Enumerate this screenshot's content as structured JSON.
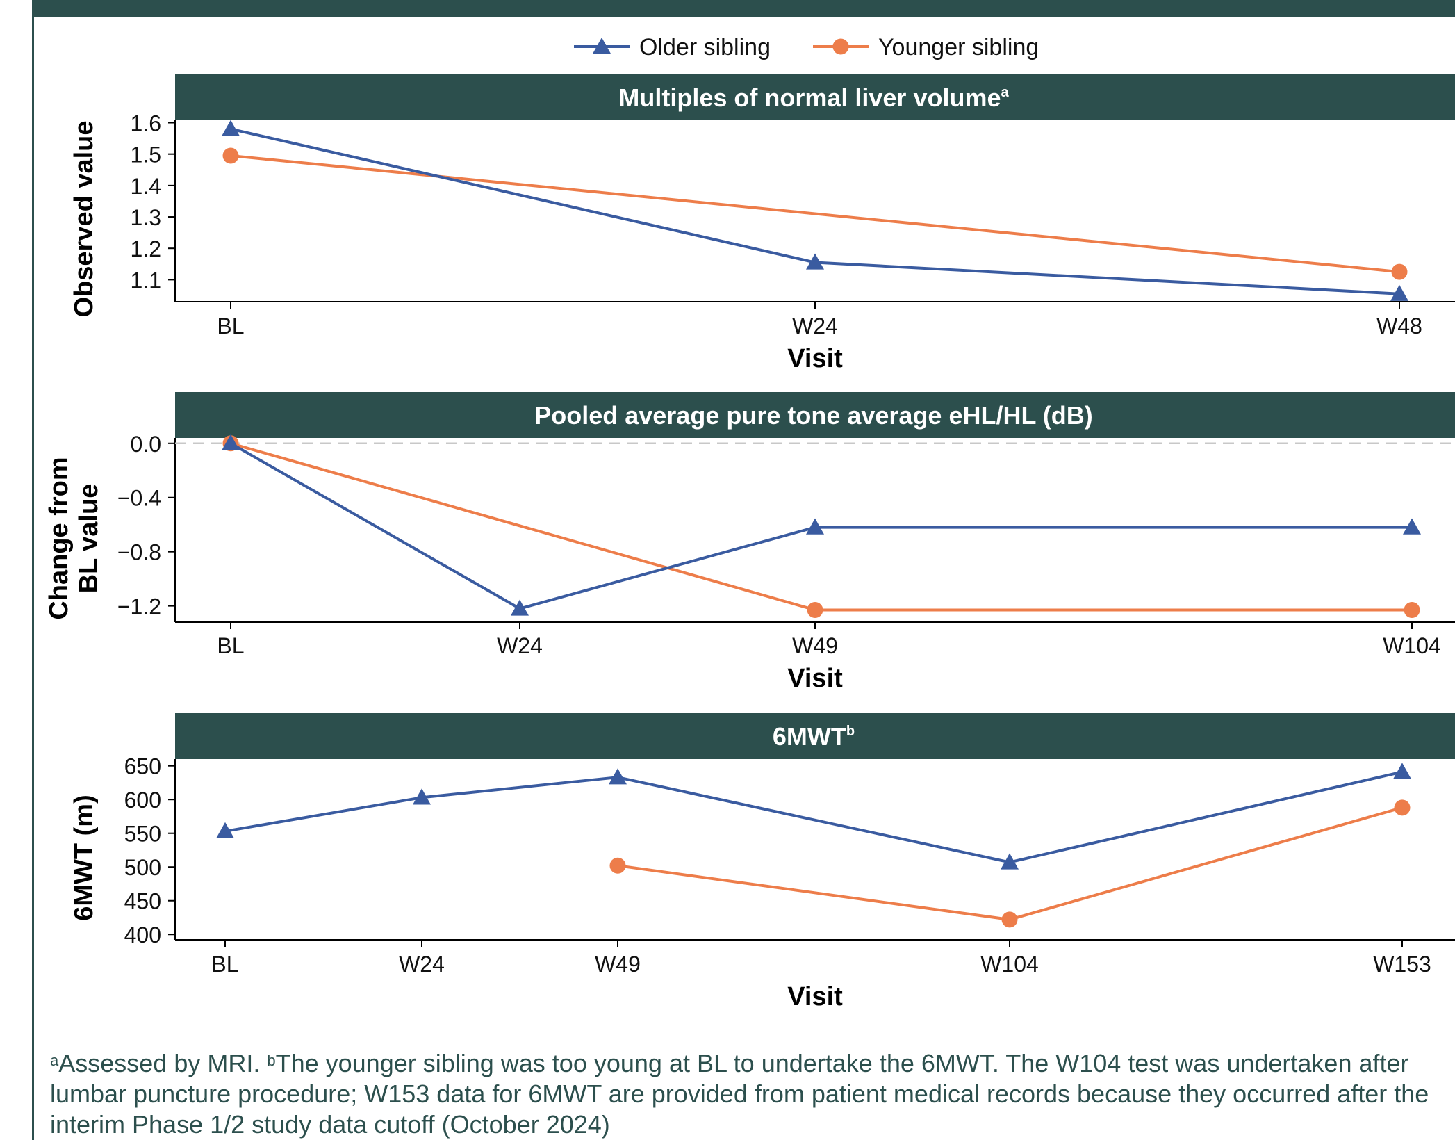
{
  "colors": {
    "older": "#3a5ba0",
    "younger": "#ed7d4a",
    "header_bg": "#2c4f4d",
    "header_text": "#ffffff",
    "zero_line": "#c8c8c8"
  },
  "legend": {
    "older_label": "Older sibling",
    "younger_label": "Younger sibling",
    "placement": "top-center"
  },
  "chart_data": [
    {
      "type": "line",
      "title": "Multiples of normal liver volume",
      "title_sup": "a",
      "xlabel": "Visit",
      "ylabel": "Observed value",
      "categories": [
        "BL",
        "W24",
        "W48"
      ],
      "yticks": [
        "1.6",
        "1.5",
        "1.4",
        "1.3",
        "1.2",
        "1.1"
      ],
      "ylim": [
        1.03,
        1.61
      ],
      "series": [
        {
          "name": "Older sibling",
          "values": [
            1.58,
            1.155,
            1.055
          ]
        },
        {
          "name": "Younger sibling",
          "values": [
            1.495,
            null,
            1.125
          ]
        }
      ]
    },
    {
      "type": "line",
      "title": "Pooled average pure tone average eHL/HL (dB)",
      "title_sup": "",
      "xlabel": "Visit",
      "ylabel_line1": "Change from",
      "ylabel_line2": "BL value",
      "categories": [
        "BL",
        "W24",
        "W49",
        "W104"
      ],
      "yticks": [
        "0.0",
        "−0.4",
        "−0.8",
        "−1.2"
      ],
      "ylim": [
        -1.32,
        0.04
      ],
      "reference_line": 0,
      "series": [
        {
          "name": "Older sibling",
          "values": [
            0.0,
            -1.22,
            -0.62,
            -0.62
          ]
        },
        {
          "name": "Younger sibling",
          "values": [
            0.0,
            null,
            -1.23,
            -1.23
          ]
        }
      ]
    },
    {
      "type": "line",
      "title": "6MWT",
      "title_sup": "b",
      "xlabel": "Visit",
      "ylabel": "6MWT (m)",
      "categories": [
        "BL",
        "W24",
        "W49",
        "W104",
        "W153"
      ],
      "yticks": [
        "650",
        "600",
        "550",
        "500",
        "450",
        "400"
      ],
      "ylim": [
        392,
        660
      ],
      "series": [
        {
          "name": "Older sibling",
          "values": [
            553,
            603,
            633,
            507,
            641
          ]
        },
        {
          "name": "Younger sibling",
          "values": [
            null,
            null,
            502,
            422,
            588
          ]
        }
      ]
    }
  ],
  "footnote": {
    "sup_a": "a",
    "text_a": "Assessed by MRI. ",
    "sup_b": "b",
    "text_b": "The younger sibling was too young at BL to undertake the 6MWT. The W104 test was undertaken after lumbar puncture procedure; W153 data for 6MWT are provided from patient medical records because they occurred after the interim Phase 1/2 study data cutoff (October 2024)"
  }
}
